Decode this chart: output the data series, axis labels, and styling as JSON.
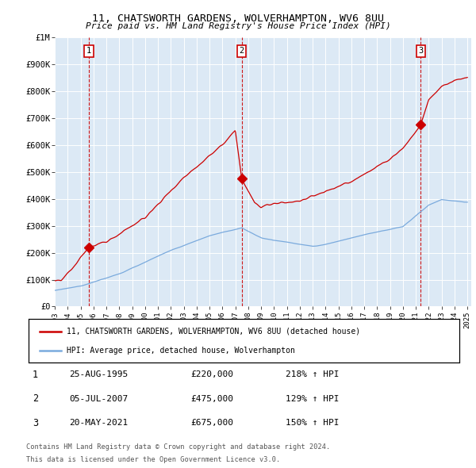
{
  "title1": "11, CHATSWORTH GARDENS, WOLVERHAMPTON, WV6 8UU",
  "title2": "Price paid vs. HM Land Registry's House Price Index (HPI)",
  "ylim": [
    0,
    1000000
  ],
  "yticks": [
    0,
    100000,
    200000,
    300000,
    400000,
    500000,
    600000,
    700000,
    800000,
    900000,
    1000000
  ],
  "ytick_labels": [
    "£0",
    "£100K",
    "£200K",
    "£300K",
    "£400K",
    "£500K",
    "£600K",
    "£700K",
    "£800K",
    "£900K",
    "£1M"
  ],
  "x_start_year": 1993,
  "x_end_year": 2025,
  "sale_color": "#cc0000",
  "hpi_color": "#7aaadd",
  "plot_bg_color": "#dce9f5",
  "grid_color": "#ffffff",
  "sales": [
    {
      "date_year": 1995.65,
      "price": 220000,
      "label": "1"
    },
    {
      "date_year": 2007.5,
      "price": 475000,
      "label": "2"
    },
    {
      "date_year": 2021.38,
      "price": 675000,
      "label": "3"
    }
  ],
  "legend_sale_label": "11, CHATSWORTH GARDENS, WOLVERHAMPTON, WV6 8UU (detached house)",
  "legend_hpi_label": "HPI: Average price, detached house, Wolverhampton",
  "table_rows": [
    {
      "num": "1",
      "date": "25-AUG-1995",
      "price": "£220,000",
      "change": "218% ↑ HPI"
    },
    {
      "num": "2",
      "date": "05-JUL-2007",
      "price": "£475,000",
      "change": "129% ↑ HPI"
    },
    {
      "num": "3",
      "date": "20-MAY-2021",
      "price": "£675,000",
      "change": "150% ↑ HPI"
    }
  ],
  "footnote1": "Contains HM Land Registry data © Crown copyright and database right 2024.",
  "footnote2": "This data is licensed under the Open Government Licence v3.0.",
  "sale_vline_color": "#cc0000"
}
